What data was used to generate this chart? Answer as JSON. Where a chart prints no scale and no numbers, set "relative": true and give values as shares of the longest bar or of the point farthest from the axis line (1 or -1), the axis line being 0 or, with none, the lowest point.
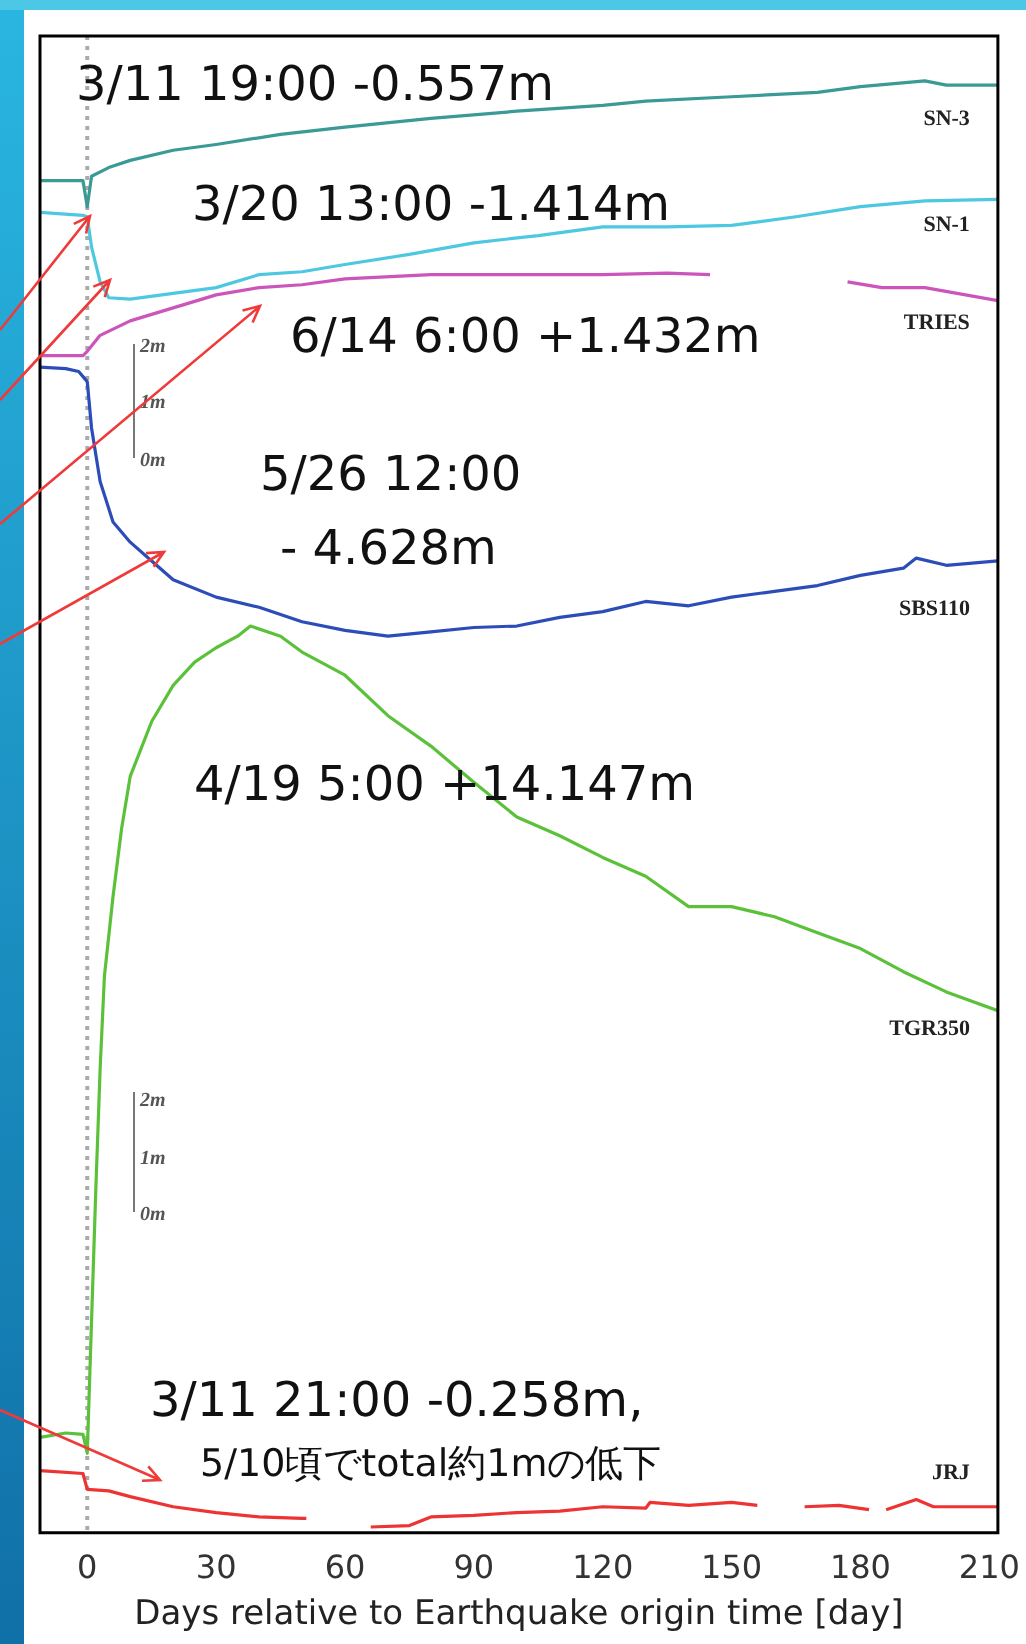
{
  "chart_data": {
    "type": "line",
    "relative": true,
    "marker": "none",
    "xlabel": "Days relative to Earthquake origin time [day]",
    "xlim": [
      -11,
      212
    ],
    "xticks": [
      0,
      30,
      60,
      90,
      120,
      150,
      180,
      210
    ],
    "ref_lines": [
      {
        "axis": "x",
        "value": 0,
        "color": "#aaaaaa",
        "line_style": "dotted"
      }
    ],
    "annotations": [
      "3/11 19:00 -0.557m",
      "3/20 13:00 -1.414m",
      "6/14 6:00 +1.432m",
      "5/26 12:00\n- 4.628m",
      "4/19 5:00 +14.147m",
      "3/11 21:00 -0.258m,",
      "5/10頃でtotal約1mの低下",
      "2m",
      "1m",
      "0m",
      "2m",
      "1m",
      "0m"
    ],
    "series": [
      {
        "name": "SN-3",
        "color": "#3a9a96",
        "x": [
          -11,
          -1,
          0,
          1,
          5,
          10,
          20,
          30,
          45,
          60,
          80,
          100,
          120,
          130,
          150,
          170,
          180,
          195,
          200,
          212
        ],
        "values": [
          0.931,
          0.931,
          0.913,
          0.934,
          0.94,
          0.945,
          0.952,
          0.956,
          0.963,
          0.968,
          0.974,
          0.979,
          0.983,
          0.986,
          0.989,
          0.992,
          0.996,
          1,
          0.997,
          0.997
        ]
      },
      {
        "name": "SN-1",
        "color": "#4ec8e0",
        "x": [
          -11,
          -1,
          0,
          1,
          3,
          5,
          10,
          20,
          30,
          40,
          50,
          60,
          75,
          90,
          105,
          120,
          135,
          150,
          165,
          180,
          195,
          212
        ],
        "values": [
          0.909,
          0.907,
          0.906,
          0.885,
          0.861,
          0.85,
          0.849,
          0.853,
          0.857,
          0.866,
          0.868,
          0.873,
          0.88,
          0.888,
          0.893,
          0.899,
          0.899,
          0.9,
          0.906,
          0.913,
          0.917,
          0.918
        ]
      },
      {
        "name": "TRIES",
        "color": "#cc55bb",
        "x": [
          -11,
          -1,
          0,
          3,
          10,
          20,
          30,
          40,
          50,
          60,
          80,
          100,
          120,
          135,
          145,
          160,
          177,
          185,
          195,
          212
        ],
        "values": [
          0.81,
          0.81,
          0.813,
          0.824,
          0.834,
          0.843,
          0.852,
          0.857,
          0.859,
          0.863,
          0.866,
          0.866,
          0.866,
          0.867,
          0.866,
          null,
          0.861,
          0.857,
          0.857,
          0.848
        ]
      },
      {
        "name": "SBS110",
        "color": "#2c4db8",
        "x": [
          -11,
          -5,
          -2,
          0,
          1,
          3,
          6,
          10,
          15,
          20,
          30,
          40,
          50,
          60,
          70,
          80,
          90,
          100,
          110,
          120,
          130,
          140,
          150,
          160,
          170,
          180,
          190,
          193,
          200,
          212
        ],
        "values": [
          0.802,
          0.801,
          0.799,
          0.792,
          0.76,
          0.723,
          0.695,
          0.681,
          0.668,
          0.655,
          0.643,
          0.636,
          0.626,
          0.62,
          0.616,
          0.619,
          0.622,
          0.623,
          0.629,
          0.633,
          0.64,
          0.637,
          0.643,
          0.647,
          0.651,
          0.658,
          0.663,
          0.67,
          0.665,
          0.668
        ]
      },
      {
        "name": "TGR350",
        "color": "#5cc13a",
        "x": [
          -11,
          -5,
          -1,
          0,
          2,
          3,
          4,
          6,
          8,
          10,
          15,
          20,
          25,
          30,
          35,
          38,
          45,
          50,
          60,
          70,
          80,
          90,
          100,
          110,
          120,
          130,
          140,
          150,
          160,
          170,
          180,
          190,
          200,
          212
        ],
        "values": [
          0.062,
          0.065,
          0.064,
          0.051,
          0.234,
          0.317,
          0.381,
          0.436,
          0.483,
          0.519,
          0.557,
          0.582,
          0.598,
          0.608,
          0.616,
          0.623,
          0.616,
          0.605,
          0.589,
          0.561,
          0.54,
          0.515,
          0.491,
          0.478,
          0.463,
          0.45,
          0.429,
          0.429,
          0.422,
          0.411,
          0.4,
          0.384,
          0.37,
          0.357
        ]
      },
      {
        "name": "JRJ",
        "color": "#ee3333",
        "x": [
          -11,
          -1,
          0,
          5,
          10,
          20,
          30,
          40,
          50,
          51,
          58,
          66,
          75,
          80,
          90,
          100,
          110,
          120,
          130,
          131,
          140,
          150,
          156,
          161,
          167,
          175,
          182,
          184,
          186,
          193,
          197,
          205,
          212
        ],
        "values": [
          0.039,
          0.037,
          0.026,
          0.025,
          0.021,
          0.014,
          0.01,
          0.007,
          0.006,
          0.006,
          null,
          0,
          0.001,
          0.007,
          0.008,
          0.01,
          0.011,
          0.014,
          0.013,
          0.017,
          0.015,
          0.017,
          0.015,
          null,
          0.014,
          0.015,
          0.012,
          null,
          0.012,
          0.019,
          0.014,
          0.014,
          0.014
        ]
      }
    ]
  }
}
